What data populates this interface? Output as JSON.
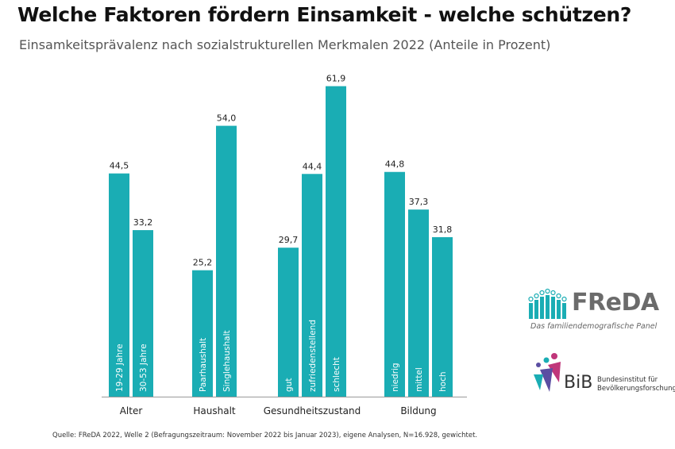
{
  "header": {
    "title": "Welche Faktoren fördern Einsamkeit - welche schützen?",
    "subtitle": "Einsamkeitsprävalenz nach sozialstrukturellen Merkmalen 2022 (Anteile in Prozent)"
  },
  "chart_data": {
    "type": "bar",
    "bar_color": "#1aadb4",
    "ylim": [
      0,
      65
    ],
    "grid": false,
    "groups": [
      {
        "name": "Alter",
        "bars": [
          {
            "label": "19-29 Jahre",
            "value": 44.5,
            "display": "44,5"
          },
          {
            "label": "30-53 Jahre",
            "value": 33.2,
            "display": "33,2"
          }
        ]
      },
      {
        "name": "Haushalt",
        "bars": [
          {
            "label": "Paarhaushalt",
            "value": 25.2,
            "display": "25,2"
          },
          {
            "label": "Singlehaushalt",
            "value": 54.0,
            "display": "54,0"
          }
        ]
      },
      {
        "name": "Gesundheitszustand",
        "bars": [
          {
            "label": "gut",
            "value": 29.7,
            "display": "29,7"
          },
          {
            "label": "zufriedenstellend",
            "value": 44.4,
            "display": "44,4"
          },
          {
            "label": "schlecht",
            "value": 61.9,
            "display": "61,9"
          }
        ]
      },
      {
        "name": "Bildung",
        "bars": [
          {
            "label": "niedrig",
            "value": 44.8,
            "display": "44,8"
          },
          {
            "label": "mittel",
            "value": 37.3,
            "display": "37,3"
          },
          {
            "label": "hoch",
            "value": 31.8,
            "display": "31,8"
          }
        ]
      }
    ]
  },
  "logos": {
    "freda_word": "FReDA",
    "freda_tagline": "Das familiendemografische Panel",
    "bib_word": "BiB",
    "bib_name_1": "Bundesinstitut für",
    "bib_name_2": "Bevölkerungsforschung",
    "freda_color": "#1aadb4",
    "bib_color": "#c0367a"
  },
  "footer": {
    "source": "Quelle: FReDA 2022, Welle 2 (Befragungszeitraum: November 2022 bis Januar 2023), eigene Analysen, N=16.928, gewichtet."
  }
}
